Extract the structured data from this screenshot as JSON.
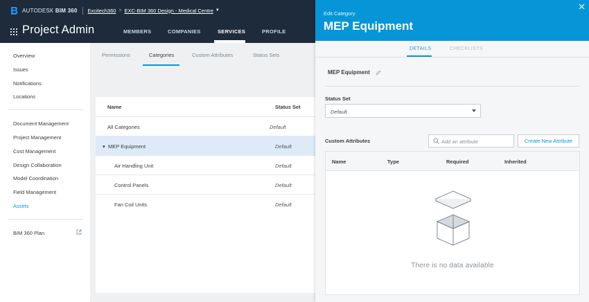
{
  "header": {
    "brand_prefix": "AUTODESK",
    "brand_product": "BIM 360",
    "breadcrumb": [
      "Excitech360",
      "EXC-BIM 360 Design - Medical Centre"
    ],
    "app_title": "Project Admin",
    "main_tabs": [
      {
        "label": "MEMBERS",
        "active": false
      },
      {
        "label": "COMPANIES",
        "active": false
      },
      {
        "label": "SERVICES",
        "active": true
      },
      {
        "label": "PROFILE",
        "active": false
      }
    ]
  },
  "sidebar": {
    "items": [
      {
        "label": "Overview"
      },
      {
        "label": "Issues"
      },
      {
        "label": "Notifications"
      },
      {
        "label": "Locations"
      },
      {
        "label": "Document Management"
      },
      {
        "label": "Project Management"
      },
      {
        "label": "Cost Management"
      },
      {
        "label": "Design Collaboration"
      },
      {
        "label": "Model Coordination"
      },
      {
        "label": "Field Management"
      },
      {
        "label": "Assets",
        "active": true
      },
      {
        "label": "BIM 360 Plan"
      }
    ]
  },
  "content": {
    "subtabs": [
      {
        "label": "Permissions"
      },
      {
        "label": "Categories",
        "active": true
      },
      {
        "label": "Custom Attributes"
      },
      {
        "label": "Status Sets"
      }
    ],
    "table": {
      "columns": [
        "Name",
        "Status Set"
      ],
      "rows": [
        {
          "name": "All Categories",
          "status": "Default"
        },
        {
          "name": "MEP Equipment",
          "status": "Default",
          "selected": true,
          "expanded": true
        },
        {
          "name": "Air Handling Unit",
          "status": "Default"
        },
        {
          "name": "Control Panels",
          "status": "Default"
        },
        {
          "name": "Fan Coil Units",
          "status": "Default"
        }
      ]
    }
  },
  "drawer": {
    "subtitle": "Edit Category",
    "title": "MEP Equipment",
    "tabs": [
      {
        "label": "DETAILS",
        "active": true
      },
      {
        "label": "CHECKLISTS",
        "active": false
      }
    ],
    "category_name": "MEP Equipment",
    "status_set_label": "Status Set",
    "status_set_value": "Default",
    "custom_attributes_label": "Custom Attributes",
    "search_placeholder": "Add an attribute",
    "create_button": "Create New Attribute",
    "attr_columns": [
      "Name",
      "Type",
      "Required",
      "Inherited"
    ],
    "empty_text": "There is no data available"
  },
  "colors": {
    "header_bg": "#1e2b3b",
    "accent": "#0696d7",
    "selected_row": "#dcebf7"
  }
}
